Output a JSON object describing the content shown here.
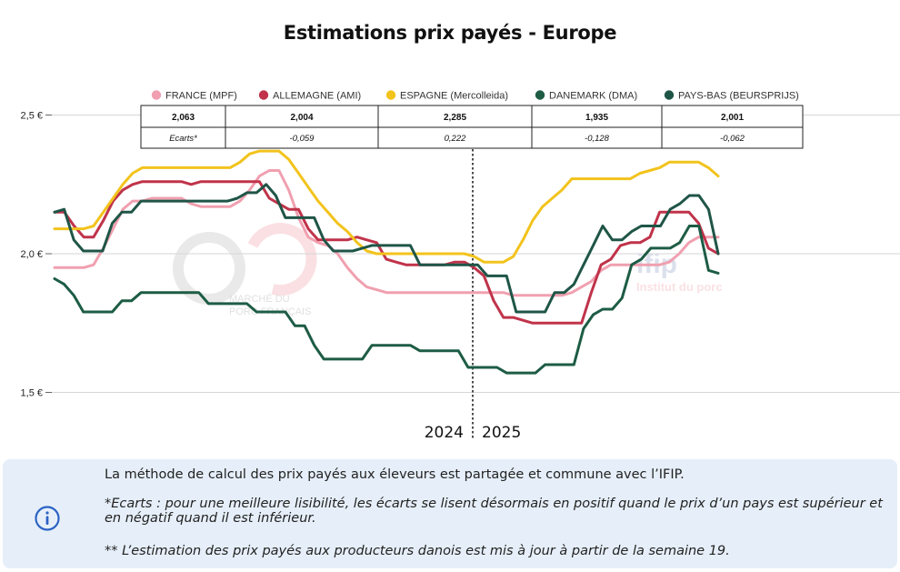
{
  "title": "Estimations prix payés - Europe",
  "chart_data": {
    "type": "line",
    "title": "Estimations prix payés - Europe",
    "ylim": [
      1.4,
      2.6
    ],
    "y_ticks": [
      {
        "value": 1.5,
        "label": "1,5 €"
      },
      {
        "value": 2.0,
        "label": "2,0 €"
      },
      {
        "value": 2.5,
        "label": "2,5 €"
      }
    ],
    "grid": true,
    "legend_position": "top",
    "year_labels": [
      "2024",
      "2025"
    ],
    "series": [
      {
        "name": "FRANCE (MPF)",
        "color": "#f0a0b0",
        "values": [
          1.95,
          1.95,
          1.95,
          1.95,
          1.96,
          2.02,
          2.09,
          2.16,
          2.19,
          2.19,
          2.2,
          2.2,
          2.2,
          2.2,
          2.18,
          2.17,
          2.17,
          2.17,
          2.17,
          2.19,
          2.23,
          2.28,
          2.3,
          2.3,
          2.23,
          2.13,
          2.06,
          2.04,
          2.03,
          2.0,
          1.95,
          1.91,
          1.88,
          1.87,
          1.86,
          1.86,
          1.86,
          1.86,
          1.86,
          1.86,
          1.86,
          1.86,
          1.86,
          1.86,
          1.86,
          1.86,
          1.86,
          1.85,
          1.85,
          1.85,
          1.85,
          1.85,
          1.85,
          1.86,
          1.88,
          1.9,
          1.94,
          1.96,
          1.96,
          1.96,
          1.96,
          1.96,
          1.96,
          1.97,
          2.0,
          2.04,
          2.06,
          2.06,
          2.06
        ]
      },
      {
        "name": "ALLEMAGNE (AMI)",
        "color": "#c0334a",
        "values": [
          2.15,
          2.15,
          2.1,
          2.06,
          2.06,
          2.12,
          2.19,
          2.23,
          2.25,
          2.26,
          2.26,
          2.26,
          2.26,
          2.26,
          2.25,
          2.26,
          2.26,
          2.26,
          2.26,
          2.26,
          2.26,
          2.26,
          2.2,
          2.18,
          2.16,
          2.16,
          2.09,
          2.05,
          2.05,
          2.05,
          2.05,
          2.06,
          2.05,
          2.04,
          1.98,
          1.97,
          1.96,
          1.96,
          1.96,
          1.96,
          1.96,
          1.97,
          1.97,
          1.95,
          1.92,
          1.83,
          1.77,
          1.77,
          1.76,
          1.75,
          1.75,
          1.75,
          1.75,
          1.75,
          1.75,
          1.86,
          1.96,
          1.98,
          2.03,
          2.04,
          2.04,
          2.06,
          2.15,
          2.15,
          2.15,
          2.15,
          2.11,
          2.02,
          2.0
        ]
      },
      {
        "name": "ESPAGNE (Mercolleida)",
        "color": "#f2c31c",
        "values": [
          2.09,
          2.09,
          2.09,
          2.09,
          2.1,
          2.15,
          2.2,
          2.25,
          2.29,
          2.31,
          2.31,
          2.31,
          2.31,
          2.31,
          2.31,
          2.31,
          2.31,
          2.31,
          2.31,
          2.33,
          2.36,
          2.37,
          2.37,
          2.37,
          2.34,
          2.29,
          2.24,
          2.19,
          2.15,
          2.11,
          2.08,
          2.04,
          2.01,
          2.0,
          2.0,
          2.0,
          2.0,
          2.0,
          2.0,
          2.0,
          2.0,
          2.0,
          2.0,
          1.99,
          1.97,
          1.97,
          1.97,
          1.99,
          2.05,
          2.12,
          2.17,
          2.2,
          2.23,
          2.27,
          2.27,
          2.27,
          2.27,
          2.27,
          2.27,
          2.27,
          2.29,
          2.3,
          2.31,
          2.33,
          2.33,
          2.33,
          2.33,
          2.31,
          2.28
        ]
      },
      {
        "name": "DANEMARK (DMA)",
        "color": "#1d5c45",
        "values": [
          1.91,
          1.89,
          1.85,
          1.79,
          1.79,
          1.79,
          1.79,
          1.83,
          1.83,
          1.86,
          1.86,
          1.86,
          1.86,
          1.86,
          1.86,
          1.86,
          1.82,
          1.82,
          1.82,
          1.82,
          1.82,
          1.79,
          1.79,
          1.79,
          1.79,
          1.74,
          1.74,
          1.67,
          1.62,
          1.62,
          1.62,
          1.62,
          1.62,
          1.67,
          1.67,
          1.67,
          1.67,
          1.67,
          1.65,
          1.65,
          1.65,
          1.65,
          1.65,
          1.59,
          1.59,
          1.59,
          1.59,
          1.57,
          1.57,
          1.57,
          1.57,
          1.6,
          1.6,
          1.6,
          1.6,
          1.73,
          1.78,
          1.8,
          1.8,
          1.84,
          1.96,
          1.98,
          2.02,
          2.02,
          2.02,
          2.04,
          2.1,
          2.1,
          1.94,
          1.93
        ]
      },
      {
        "name": "PAYS-BAS (BEURSPRIJS)",
        "color": "#1f5547",
        "values": [
          2.15,
          2.16,
          2.05,
          2.01,
          2.01,
          2.01,
          2.11,
          2.15,
          2.15,
          2.19,
          2.19,
          2.19,
          2.19,
          2.19,
          2.19,
          2.19,
          2.19,
          2.19,
          2.19,
          2.2,
          2.22,
          2.22,
          2.25,
          2.21,
          2.13,
          2.13,
          2.13,
          2.13,
          2.05,
          2.01,
          2.01,
          2.01,
          2.02,
          2.03,
          2.03,
          2.03,
          2.03,
          2.03,
          1.96,
          1.96,
          1.96,
          1.96,
          1.96,
          1.96,
          1.96,
          1.92,
          1.92,
          1.92,
          1.79,
          1.79,
          1.79,
          1.79,
          1.86,
          1.86,
          1.89,
          1.96,
          2.03,
          2.1,
          2.05,
          2.05,
          2.08,
          2.1,
          2.1,
          2.1,
          2.16,
          2.18,
          2.21,
          2.21,
          2.16,
          2.0
        ]
      }
    ],
    "table": {
      "values": [
        "2,063",
        "2,004",
        "2,285",
        "1,935",
        "2,001"
      ],
      "ecarts_label": "Ecarts*",
      "ecarts": [
        "",
        "-0,059",
        "0,222",
        "-0,128",
        "-0,062"
      ]
    }
  },
  "watermarks": {
    "left_line1": "MARCHÉ DU",
    "left_line2": "PORC FRANÇAIS",
    "right_logo": "ifip",
    "right_sub": "Institut du porc"
  },
  "info": {
    "icon": "info-circle-icon",
    "note1": "La méthode de calcul des prix payés aux éleveurs est partagée et commune avec l’IFIP.",
    "note2": "*Ecarts : pour une meilleure lisibilité, les écarts se lisent désormais en positif quand le prix d’un pays est supérieur et en négatif quand il est inférieur.",
    "note3": "** L’estimation des prix payés aux producteurs danois est mis à jour à partir de la semaine 19."
  }
}
